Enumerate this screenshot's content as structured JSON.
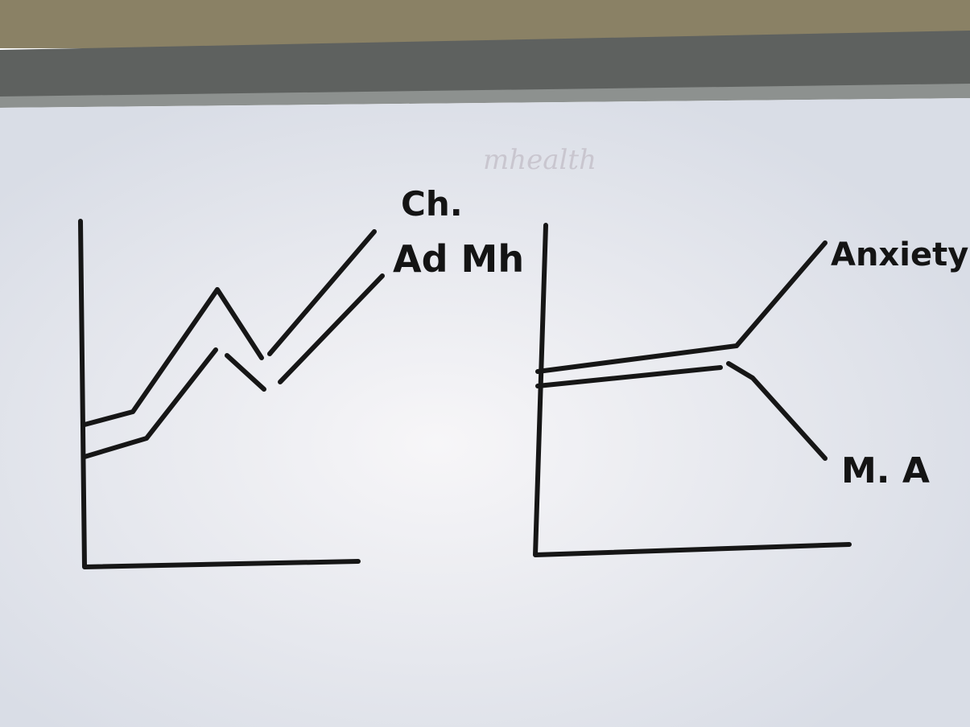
{
  "photo": {
    "faint_text": "mhealth",
    "left_sketch": {
      "labels": [
        "Ch.",
        "Ad Mh"
      ]
    },
    "right_sketch": {
      "labels": [
        "Anxiety",
        "M. A"
      ]
    }
  }
}
